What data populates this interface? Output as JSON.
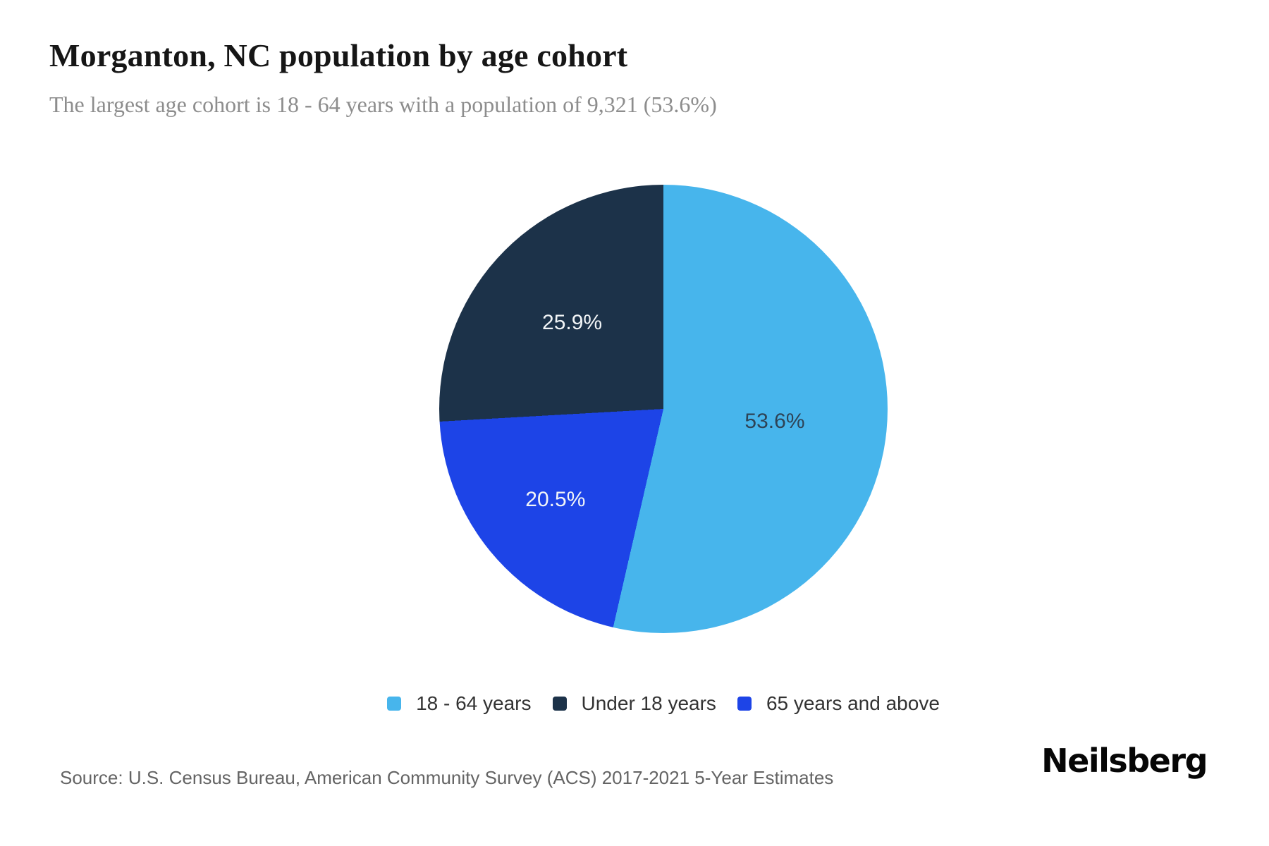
{
  "header": {
    "title": "Morganton, NC population by age cohort",
    "subtitle": "The largest age cohort is 18 - 64 years with a population of 9,321 (53.6%)"
  },
  "chart_data": {
    "type": "pie",
    "title": "Morganton, NC population by age cohort",
    "subtitle": "The largest age cohort is 18 - 64 years with a population of 9,321 (53.6%)",
    "slices": [
      {
        "label": "18 - 64 years",
        "value_pct": 53.6,
        "pct_label": "53.6%",
        "color": "#47b5ec",
        "label_color": "#2e4356"
      },
      {
        "label": "Under 18 years",
        "value_pct": 25.9,
        "pct_label": "25.9%",
        "color": "#1c3249",
        "label_color": "#f2f5f7"
      },
      {
        "label": "65 years and above",
        "value_pct": 20.5,
        "pct_label": "20.5%",
        "color": "#1d44e7",
        "label_color": "#f2f5f7"
      }
    ],
    "start_angle_deg": 0,
    "direction": "clockwise",
    "clockwise_visual_order": [
      "18 - 64 years",
      "65 years and above",
      "Under 18 years"
    ],
    "legend_position": "bottom",
    "largest_cohort": {
      "label": "18 - 64 years",
      "population": "9,321",
      "share": "53.6%"
    }
  },
  "footer": {
    "source": "Source: U.S. Census Bureau, American Community Survey (ACS) 2017-2021 5-Year Estimates",
    "brand": "Neilsberg"
  }
}
